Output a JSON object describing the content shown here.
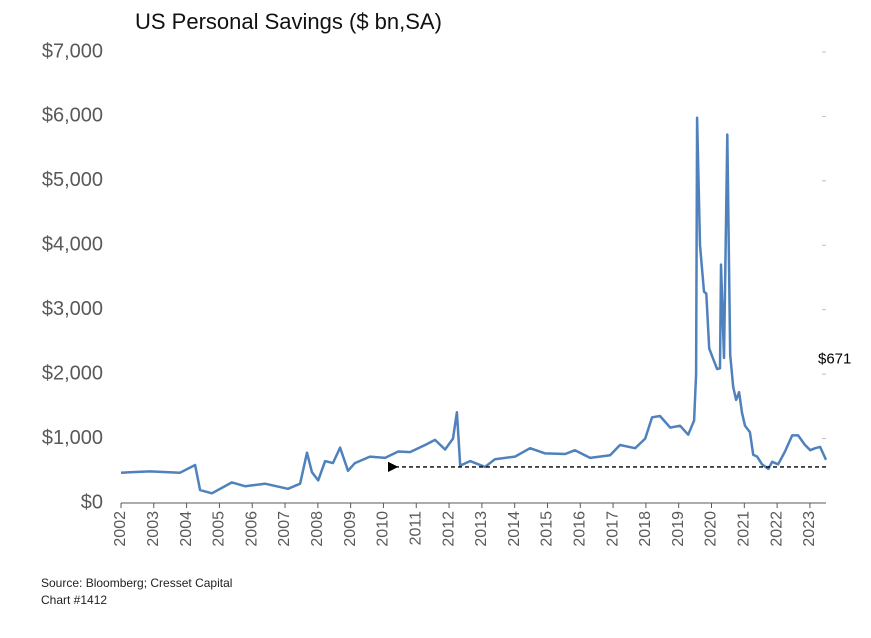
{
  "chart_data": {
    "type": "line",
    "title": "US Personal Savings ($ bn,SA)",
    "source": "Source: Bloomberg; Cresset Capital",
    "chart_number": "Chart #1412",
    "annotation": {
      "text": "$671",
      "x": 2023.49,
      "y": 671
    },
    "reference_arrow": {
      "value": 560,
      "x_start": 2023.49,
      "x_end": 2010.23
    },
    "x": [
      2002.0,
      2002.88,
      2003.8,
      2004.26,
      2004.41,
      2004.77,
      2005.38,
      2005.78,
      2006.39,
      2007.09,
      2007.46,
      2007.67,
      2007.82,
      2008.01,
      2008.22,
      2008.46,
      2008.68,
      2008.92,
      2009.13,
      2009.59,
      2010.05,
      2010.45,
      2010.81,
      2011.27,
      2011.57,
      2011.88,
      2012.12,
      2012.24,
      2012.34,
      2012.64,
      2013.1,
      2013.4,
      2014.01,
      2014.47,
      2014.93,
      2015.54,
      2015.84,
      2016.3,
      2016.91,
      2017.21,
      2017.67,
      2017.98,
      2018.19,
      2018.43,
      2018.74,
      2019.04,
      2019.29,
      2019.47,
      2019.53,
      2019.56,
      2019.65,
      2019.77,
      2019.84,
      2019.93,
      2020.08,
      2020.17,
      2020.26,
      2020.29,
      2020.38,
      2020.48,
      2020.57,
      2020.66,
      2020.75,
      2020.84,
      2020.93,
      2021.02,
      2021.17,
      2021.27,
      2021.39,
      2021.54,
      2021.73,
      2021.85,
      2022.03,
      2022.24,
      2022.46,
      2022.64,
      2022.85,
      2023.01,
      2023.16,
      2023.31,
      2023.49
    ],
    "series": [
      {
        "color": "#4f81bd",
        "values": [
          470,
          490,
          470,
          590,
          200,
          150,
          320,
          260,
          300,
          220,
          300,
          780,
          480,
          350,
          650,
          620,
          860,
          500,
          620,
          720,
          700,
          800,
          790,
          900,
          980,
          830,
          1000,
          1410,
          580,
          650,
          560,
          680,
          720,
          850,
          770,
          760,
          820,
          700,
          740,
          900,
          850,
          1000,
          1330,
          1350,
          1170,
          1200,
          1060,
          1280,
          2000,
          5980,
          4000,
          3280,
          3250,
          2400,
          2200,
          2080,
          2090,
          3700,
          2250,
          5720,
          2300,
          1800,
          1600,
          1720,
          1400,
          1200,
          1100,
          750,
          720,
          600,
          530,
          640,
          600,
          800,
          1050,
          1050,
          900,
          820,
          850,
          870,
          671
        ]
      }
    ],
    "xlim": [
      2002,
      2023.49
    ],
    "xticks": [
      2002,
      2003,
      2004,
      2005,
      2006,
      2007,
      2008,
      2009,
      2010,
      2011,
      2012,
      2013,
      2014,
      2015,
      2016,
      2017,
      2018,
      2019,
      2020,
      2021,
      2022,
      2023
    ],
    "ylim": [
      0,
      7000
    ],
    "yticks": [
      {
        "value": 0,
        "label": "$0"
      },
      {
        "value": 1000,
        "label": "$1,000"
      },
      {
        "value": 2000,
        "label": "$2,000"
      },
      {
        "value": 3000,
        "label": "$3,000"
      },
      {
        "value": 4000,
        "label": "$4,000"
      },
      {
        "value": 5000,
        "label": "$5,000"
      },
      {
        "value": 6000,
        "label": "$6,000"
      },
      {
        "value": 7000,
        "label": "$7,000"
      }
    ]
  }
}
